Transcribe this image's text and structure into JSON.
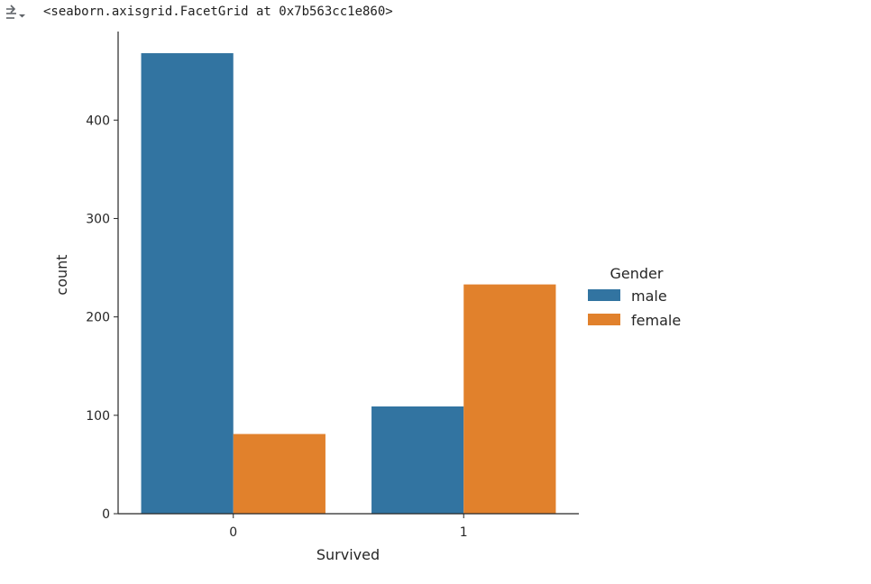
{
  "cell_output": {
    "toggle_icon": "output-collapse-icon",
    "repr_text": "<seaborn.axisgrid.FacetGrid at 0x7b563cc1e860>"
  },
  "chart_data": {
    "type": "bar",
    "categories": [
      "0",
      "1"
    ],
    "series": [
      {
        "name": "male",
        "values": [
          468,
          109
        ],
        "color": "#3274a1"
      },
      {
        "name": "female",
        "values": [
          81,
          233
        ],
        "color": "#e1812c"
      }
    ],
    "xlabel": "Survived",
    "ylabel": "count",
    "yticks": [
      0,
      100,
      200,
      300,
      400
    ],
    "ylim": [
      0,
      490
    ],
    "legend": {
      "title": "Gender",
      "placement": "right"
    },
    "grid": false
  }
}
